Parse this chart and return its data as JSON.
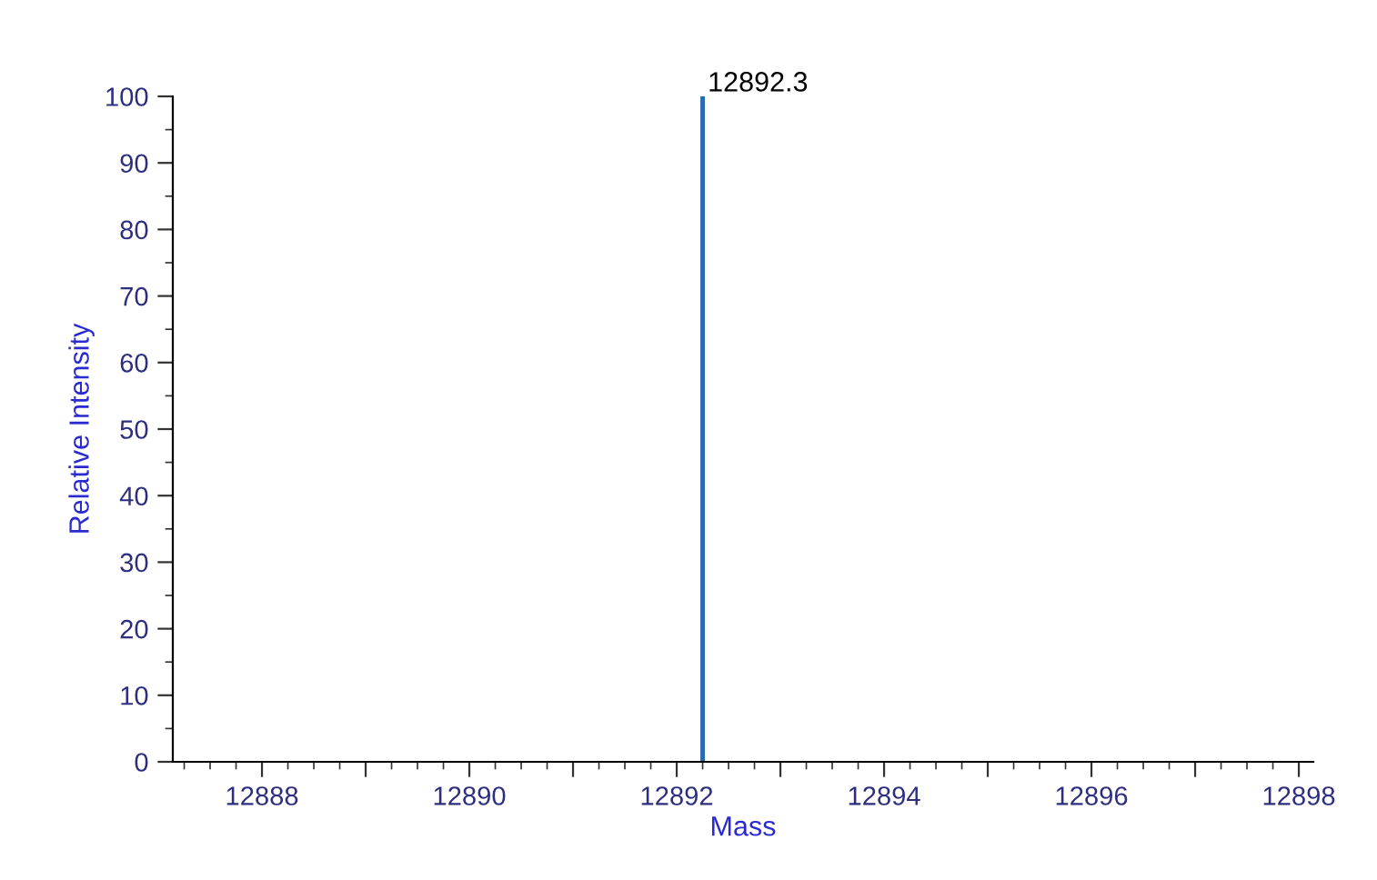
{
  "chart_data": {
    "type": "line",
    "xlabel": "Mass",
    "ylabel": "Relative Intensity",
    "series": [
      {
        "x": [
          12892.25,
          12892.25
        ],
        "values": [
          0,
          100
        ],
        "color": "#2b6cb0"
      }
    ],
    "xlim": [
      12887.14,
      12898.14
    ],
    "ylim": [
      0,
      100
    ],
    "xticks": [
      12888,
      {
        "value": 12889,
        "label": null
      },
      12890,
      {
        "value": 12891,
        "label": null
      },
      12892,
      {
        "value": 12893,
        "label": null
      },
      12894,
      {
        "value": 12895,
        "label": null
      },
      12896,
      {
        "value": 12897,
        "label": null
      },
      12898
    ],
    "yticks": [
      0,
      10,
      20,
      30,
      40,
      50,
      60,
      70,
      80,
      90,
      100
    ],
    "annotations": [
      {
        "text": "12892.3",
        "x": 12892.25,
        "y": 100
      }
    ],
    "grid": false,
    "legend": false
  }
}
